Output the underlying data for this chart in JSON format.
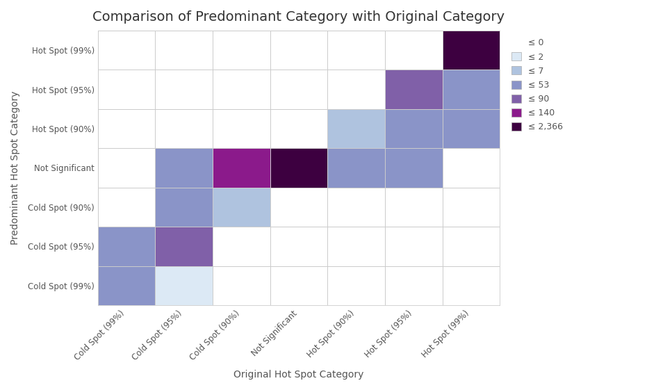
{
  "title": "Comparison of Predominant Category with Original Category",
  "xlabel": "Original Hot Spot Category",
  "ylabel": "Predominant Hot Spot Category",
  "x_labels": [
    "Cold Spot (99%)",
    "Cold Spot (95%)",
    "Cold Spot (90%)",
    "Not Significant",
    "Hot Spot (90%)",
    "Hot Spot (95%)",
    "Hot Spot (99%)"
  ],
  "y_labels": [
    "Hot Spot (99%)",
    "Hot Spot (95%)",
    "Hot Spot (90%)",
    "Not Significant",
    "Cold Spot (90%)",
    "Cold Spot (95%)",
    "Cold Spot (99%)"
  ],
  "matrix": [
    [
      0,
      0,
      0,
      0,
      0,
      0,
      150
    ],
    [
      0,
      0,
      0,
      0,
      0,
      80,
      45
    ],
    [
      0,
      0,
      0,
      0,
      5,
      45,
      45
    ],
    [
      0,
      45,
      100,
      2366,
      45,
      45,
      0
    ],
    [
      0,
      45,
      5,
      0,
      0,
      0,
      0
    ],
    [
      45,
      85,
      0,
      0,
      0,
      0,
      0
    ],
    [
      45,
      1,
      0,
      0,
      0,
      0,
      0
    ]
  ],
  "legend_labels": [
    "≤ 0",
    "≤ 2",
    "≤ 7",
    "≤ 53",
    "≤ 90",
    "≤ 140",
    "≤ 2,366"
  ],
  "colors": [
    "#ffffff",
    "#dce9f5",
    "#afc3df",
    "#8a94c8",
    "#8060a8",
    "#8b1a8b",
    "#3d0040"
  ],
  "background_color": "#ffffff",
  "title_fontsize": 14,
  "axis_label_fontsize": 10,
  "tick_fontsize": 8.5
}
